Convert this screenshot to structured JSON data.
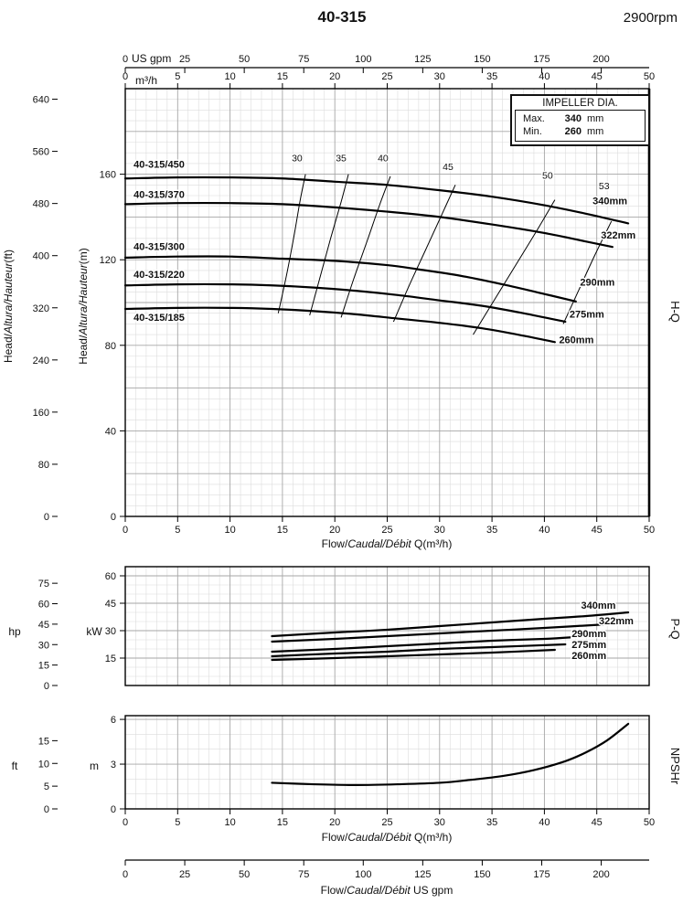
{
  "header": {
    "title": "40-315",
    "rpm": "2900rpm"
  },
  "legend": {
    "title": "IMPELLER DIA.",
    "max_label": "Max.",
    "max_value": "340",
    "min_label": "Min.",
    "min_value": "260",
    "unit": "mm"
  },
  "labels": {
    "us_gpm": "US gpm",
    "m3h": "m³/h",
    "head_prefix": "Head/",
    "head_italic": "Altura/Hauteur",
    "head_ft_unit": "(ft)",
    "head_m_unit": "(m)",
    "flow_prefix": "Flow/",
    "flow_italic": "Caudal/Débit",
    "flow_q_unit": " Q(m³/h)",
    "flow_gpm_unit": " US gpm",
    "hp": "hp",
    "kw": "kW",
    "ft": "ft",
    "m": "m",
    "hq": "H-Q",
    "pq": "P-Q",
    "npshr": "NPSHr"
  },
  "chart_data": [
    {
      "id": "hq",
      "type": "line",
      "title": "H-Q",
      "xlabel": "Flow/Caudal/Débit Q(m³/h)",
      "ylabel": "Head/Altura/Hauteur(m)",
      "ylabel_secondary": "Head/Altura/Hauteur(ft)",
      "xlim": [
        0,
        50
      ],
      "ylim": [
        0,
        200
      ],
      "grid": true,
      "x_ticks": [
        0,
        5,
        10,
        15,
        20,
        25,
        30,
        35,
        40,
        45,
        50
      ],
      "x_ticks_usgpm": [
        0,
        25,
        50,
        75,
        100,
        125,
        150,
        175,
        200
      ],
      "y_ticks_m": [
        0,
        40,
        80,
        120,
        160
      ],
      "y_ticks_ft": [
        0,
        80,
        160,
        240,
        320,
        400,
        480,
        560,
        640
      ],
      "series": [
        {
          "name": "340mm",
          "model": "40-315/450",
          "points": [
            [
              0,
              158
            ],
            [
              5,
              158.5
            ],
            [
              10,
              158.5
            ],
            [
              15,
              158
            ],
            [
              20,
              156.5
            ],
            [
              25,
              155
            ],
            [
              30,
              152.5
            ],
            [
              35,
              149.5
            ],
            [
              40,
              145.5
            ],
            [
              44,
              141.5
            ],
            [
              48,
              137
            ]
          ],
          "label_pos": [
            44.6,
            146
          ],
          "model_pos": [
            0.8,
            163
          ]
        },
        {
          "name": "322mm",
          "model": "40-315/370",
          "points": [
            [
              0,
              146
            ],
            [
              5,
              146.5
            ],
            [
              10,
              146.5
            ],
            [
              15,
              146
            ],
            [
              20,
              144.5
            ],
            [
              25,
              142.5
            ],
            [
              30,
              140
            ],
            [
              35,
              136.5
            ],
            [
              40,
              132.5
            ],
            [
              44,
              128.5
            ],
            [
              46.5,
              126
            ]
          ],
          "label_pos": [
            45.4,
            130
          ],
          "model_pos": [
            0.8,
            149
          ]
        },
        {
          "name": "290mm",
          "model": "40-315/300",
          "points": [
            [
              0,
              121
            ],
            [
              5,
              121.5
            ],
            [
              10,
              121.5
            ],
            [
              15,
              120.5
            ],
            [
              20,
              119.5
            ],
            [
              25,
              117.5
            ],
            [
              28,
              115.5
            ],
            [
              32,
              112.5
            ],
            [
              36,
              108.5
            ],
            [
              40,
              104
            ],
            [
              43,
              100.5
            ]
          ],
          "label_pos": [
            43.4,
            108
          ],
          "model_pos": [
            0.8,
            124.5
          ]
        },
        {
          "name": "275mm",
          "model": "40-315/220",
          "points": [
            [
              0,
              108
            ],
            [
              5,
              108.5
            ],
            [
              10,
              108.5
            ],
            [
              14,
              108
            ],
            [
              18,
              107
            ],
            [
              22,
              105.5
            ],
            [
              26,
              103.5
            ],
            [
              30,
              101
            ],
            [
              34,
              98.5
            ],
            [
              38,
              95
            ],
            [
              42,
              91
            ]
          ],
          "label_pos": [
            42.4,
            93
          ],
          "model_pos": [
            0.8,
            111.5
          ]
        },
        {
          "name": "260mm",
          "model": "40-315/185",
          "points": [
            [
              0,
              97
            ],
            [
              5,
              97.5
            ],
            [
              10,
              97.5
            ],
            [
              14,
              97
            ],
            [
              18,
              96
            ],
            [
              22,
              94.5
            ],
            [
              26,
              92.5
            ],
            [
              30,
              90.5
            ],
            [
              34,
              88
            ],
            [
              38,
              84.5
            ],
            [
              41,
              81.5
            ]
          ],
          "label_pos": [
            41.4,
            81
          ],
          "model_pos": [
            0.8,
            91.5
          ]
        }
      ],
      "efficiency_lines": [
        {
          "value": "30",
          "points": [
            [
              14.6,
              95
            ],
            [
              15.4,
              113
            ],
            [
              16.1,
              131
            ],
            [
              16.7,
              148
            ],
            [
              17.2,
              160
            ]
          ],
          "label_pos": [
            16.4,
            166
          ]
        },
        {
          "value": "35",
          "points": [
            [
              17.6,
              94
            ],
            [
              18.6,
              112
            ],
            [
              19.6,
              130
            ],
            [
              20.6,
              147
            ],
            [
              21.3,
              160
            ]
          ],
          "label_pos": [
            20.6,
            166
          ]
        },
        {
          "value": "40",
          "points": [
            [
              20.6,
              93
            ],
            [
              21.8,
              111
            ],
            [
              23.1,
              129
            ],
            [
              24.3,
              146
            ],
            [
              25.3,
              159
            ]
          ],
          "label_pos": [
            24.6,
            166
          ]
        },
        {
          "value": "45",
          "points": [
            [
              25.6,
              91
            ],
            [
              27.1,
              108
            ],
            [
              28.7,
              125
            ],
            [
              30.2,
              141
            ],
            [
              31.5,
              155
            ]
          ],
          "label_pos": [
            30.8,
            162
          ]
        },
        {
          "value": "50",
          "points": [
            [
              33.2,
              85
            ],
            [
              35.2,
              101
            ],
            [
              37.2,
              117
            ],
            [
              39.2,
              133
            ],
            [
              41,
              148
            ]
          ],
          "label_pos": [
            40.3,
            158
          ]
        },
        {
          "value": "53",
          "points": [
            [
              41.8,
              90
            ],
            [
              43.3,
              106
            ],
            [
              44.8,
              122
            ],
            [
              46.4,
              138
            ]
          ],
          "label_pos": [
            45.7,
            153
          ]
        }
      ]
    },
    {
      "id": "pq",
      "type": "line",
      "title": "P-Q",
      "ylabel": "kW",
      "ylabel_secondary": "hp",
      "xlim": [
        0,
        50
      ],
      "ylim": [
        0,
        65
      ],
      "grid": true,
      "y_ticks_kw": [
        15,
        30,
        45,
        60
      ],
      "y_ticks_hp": [
        0,
        15,
        30,
        45,
        60,
        75
      ],
      "series": [
        {
          "name": "340mm",
          "points": [
            [
              14,
              27
            ],
            [
              20,
              29
            ],
            [
              25,
              30.5
            ],
            [
              30,
              32.5
            ],
            [
              35,
              34.5
            ],
            [
              40,
              36.5
            ],
            [
              44,
              38
            ],
            [
              48,
              40
            ]
          ],
          "label_pos": [
            43.5,
            42
          ]
        },
        {
          "name": "322mm",
          "points": [
            [
              14,
              24
            ],
            [
              20,
              25.5
            ],
            [
              25,
              27
            ],
            [
              30,
              28.5
            ],
            [
              35,
              30
            ],
            [
              40,
              31.5
            ],
            [
              46,
              33.5
            ]
          ],
          "label_pos": [
            45.2,
            33.5
          ]
        },
        {
          "name": "290mm",
          "points": [
            [
              14,
              18.5
            ],
            [
              20,
              20
            ],
            [
              25,
              21.5
            ],
            [
              30,
              23
            ],
            [
              35,
              24.5
            ],
            [
              40,
              25.5
            ],
            [
              43,
              26.5
            ]
          ],
          "label_pos": [
            42.6,
            26.5
          ]
        },
        {
          "name": "275mm",
          "points": [
            [
              14,
              16
            ],
            [
              20,
              17.5
            ],
            [
              25,
              18.5
            ],
            [
              30,
              20
            ],
            [
              35,
              21
            ],
            [
              42,
              22.5
            ]
          ],
          "label_pos": [
            42.6,
            20.5
          ]
        },
        {
          "name": "260mm",
          "points": [
            [
              14,
              14
            ],
            [
              20,
              15
            ],
            [
              25,
              16
            ],
            [
              30,
              17
            ],
            [
              35,
              18
            ],
            [
              41,
              19.5
            ]
          ],
          "label_pos": [
            42.6,
            14.5
          ]
        }
      ]
    },
    {
      "id": "npshr",
      "type": "line",
      "title": "NPSHr",
      "xlabel": "Flow/Caudal/Débit Q(m³/h)",
      "xlabel_secondary": "Flow/Caudal/Débit US gpm",
      "ylabel": "m",
      "ylabel_secondary": "ft",
      "xlim": [
        0,
        50
      ],
      "ylim": [
        0,
        6.25
      ],
      "grid": true,
      "x_ticks": [
        0,
        5,
        10,
        15,
        20,
        25,
        30,
        35,
        40,
        45,
        50
      ],
      "x_ticks_usgpm": [
        0,
        25,
        50,
        75,
        100,
        125,
        150,
        175,
        200
      ],
      "y_ticks_m": [
        0,
        3,
        6
      ],
      "y_ticks_ft": [
        0,
        5,
        10,
        15
      ],
      "series": [
        {
          "name": "NPSHr",
          "points": [
            [
              14,
              1.75
            ],
            [
              18,
              1.65
            ],
            [
              22,
              1.6
            ],
            [
              26,
              1.65
            ],
            [
              30,
              1.75
            ],
            [
              33,
              1.95
            ],
            [
              36,
              2.2
            ],
            [
              39,
              2.6
            ],
            [
              42,
              3.2
            ],
            [
              44,
              3.8
            ],
            [
              46,
              4.6
            ],
            [
              48,
              5.7
            ]
          ]
        }
      ]
    }
  ]
}
